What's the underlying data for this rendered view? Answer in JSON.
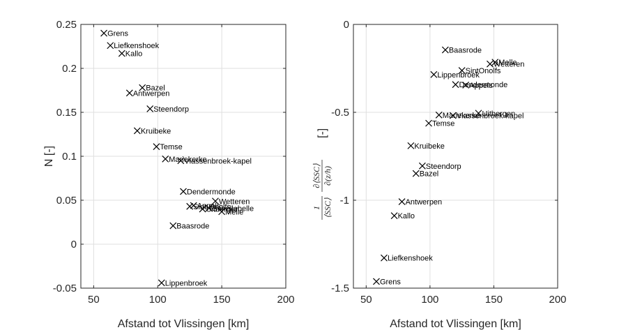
{
  "chart_data": [
    {
      "type": "scatter",
      "xlabel": "Afstand tot Vlissingen [km]",
      "ylabel": "N [-]",
      "xlim": [
        40,
        200
      ],
      "ylim": [
        -0.05,
        0.25
      ],
      "xticks": [
        "50",
        "100",
        "150",
        "200"
      ],
      "yticks": [
        "-0.05",
        "0",
        "0.05",
        "0.1",
        "0.15",
        "0.2",
        "0.25"
      ],
      "grid": true,
      "marker": "x",
      "points": [
        {
          "label": "Grens",
          "x": 58,
          "y": 0.24
        },
        {
          "label": "Liefkenshoek",
          "x": 63,
          "y": 0.226
        },
        {
          "label": "Kallo",
          "x": 72,
          "y": 0.217
        },
        {
          "label": "Bazel",
          "x": 88,
          "y": 0.178
        },
        {
          "label": "Antwerpen",
          "x": 78,
          "y": 0.172
        },
        {
          "label": "Steendorp",
          "x": 94,
          "y": 0.154
        },
        {
          "label": "Kruibeke",
          "x": 84,
          "y": 0.129
        },
        {
          "label": "Temse",
          "x": 99,
          "y": 0.111
        },
        {
          "label": "Mariekerke",
          "x": 106,
          "y": 0.097
        },
        {
          "label": "Vlassenbroek-kapel",
          "x": 118,
          "y": 0.095
        },
        {
          "label": "Dendermonde",
          "x": 120,
          "y": 0.06
        },
        {
          "label": "Wetteren",
          "x": 145,
          "y": 0.049
        },
        {
          "label": "Appels",
          "x": 128,
          "y": 0.044
        },
        {
          "label": "Sint Onolfs",
          "x": 125,
          "y": 0.043
        },
        {
          "label": "Uitbergen",
          "x": 135,
          "y": 0.04
        },
        {
          "label": "Schellebelle",
          "x": 140,
          "y": 0.041
        },
        {
          "label": "Melle",
          "x": 150,
          "y": 0.037
        },
        {
          "label": "Baasrode",
          "x": 112,
          "y": 0.021
        },
        {
          "label": "Lippenbroek",
          "x": 103,
          "y": -0.044
        }
      ]
    },
    {
      "type": "scatter",
      "xlabel": "Afstand tot Vlissingen [km]",
      "ylabel_unit": "[-]",
      "ylabel_math": {
        "frac1_num": "1",
        "frac1_den": "⟨SSC⟩",
        "frac2_num": "∂⟨SSC⟩",
        "frac2_den": "∂(z/h)"
      },
      "xlim": [
        40,
        200
      ],
      "ylim": [
        -1.5,
        0
      ],
      "xticks": [
        "50",
        "100",
        "150",
        "200"
      ],
      "yticks": [
        "-1.5",
        "-1",
        "-0.5",
        "0"
      ],
      "grid": true,
      "marker": "x",
      "points": [
        {
          "label": "Baasrode",
          "x": 112,
          "y": -0.145
        },
        {
          "label": "Melle",
          "x": 151,
          "y": -0.215
        },
        {
          "label": "Wetteren",
          "x": 147,
          "y": -0.225
        },
        {
          "label": "SintOnolfs",
          "x": 125,
          "y": -0.262
        },
        {
          "label": "Lippenbroek",
          "x": 103,
          "y": -0.285
        },
        {
          "label": "Dendermonde",
          "x": 120,
          "y": -0.342
        },
        {
          "label": "Appels",
          "x": 128,
          "y": -0.345
        },
        {
          "label": "Uitbergen",
          "x": 138,
          "y": -0.505
        },
        {
          "label": "Vlassenbroek-kapel",
          "x": 118,
          "y": -0.518
        },
        {
          "label": "Mariekerke",
          "x": 107,
          "y": -0.515
        },
        {
          "label": "Temse",
          "x": 99,
          "y": -0.562
        },
        {
          "label": "Kruibeke",
          "x": 85,
          "y": -0.69
        },
        {
          "label": "Steendorp",
          "x": 94,
          "y": -0.805
        },
        {
          "label": "Bazel",
          "x": 89,
          "y": -0.848
        },
        {
          "label": "Antwerpen",
          "x": 78,
          "y": -1.008
        },
        {
          "label": "Kallo",
          "x": 72,
          "y": -1.088
        },
        {
          "label": "Liefkenshoek",
          "x": 64,
          "y": -1.328
        },
        {
          "label": "Grens",
          "x": 58,
          "y": -1.462
        }
      ]
    }
  ]
}
